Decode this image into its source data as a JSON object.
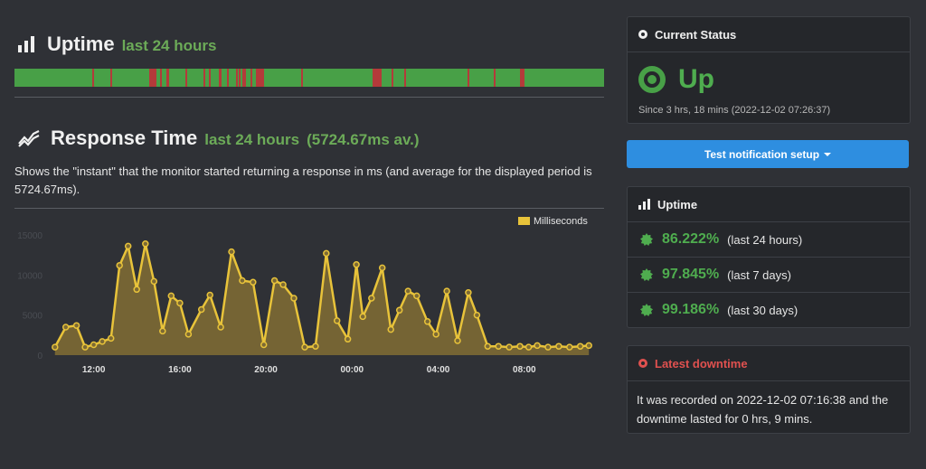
{
  "uptime_section": {
    "title": "Uptime",
    "subtitle": "last 24 hours",
    "bar": {
      "ok_color": "#48a047",
      "down_color": "#b43a3a",
      "down_segments": [
        [
          0.132,
          0.133
        ],
        [
          0.162,
          0.163
        ],
        [
          0.229,
          0.241
        ],
        [
          0.247,
          0.248
        ],
        [
          0.258,
          0.262
        ],
        [
          0.29,
          0.291
        ],
        [
          0.32,
          0.321
        ],
        [
          0.33,
          0.331
        ],
        [
          0.347,
          0.352
        ],
        [
          0.36,
          0.363
        ],
        [
          0.375,
          0.376
        ],
        [
          0.38,
          0.381
        ],
        [
          0.387,
          0.388
        ],
        [
          0.39,
          0.392
        ],
        [
          0.4,
          0.401
        ],
        [
          0.41,
          0.424
        ],
        [
          0.486,
          0.487
        ],
        [
          0.608,
          0.623
        ],
        [
          0.64,
          0.641
        ],
        [
          0.661,
          0.663
        ],
        [
          0.769,
          0.772
        ],
        [
          0.813,
          0.814
        ],
        [
          0.858,
          0.866
        ]
      ]
    }
  },
  "response_section": {
    "title": "Response Time",
    "subtitle": "last 24 hours",
    "average": "(5724.67ms av.)",
    "description": "Shows the \"instant\" that the monitor started returning a response in ms (and average for the displayed period is 5724.67ms)."
  },
  "chart_data": {
    "type": "area",
    "legend": "Milliseconds",
    "legend_position": "top-right",
    "ylim": [
      0,
      15000
    ],
    "y_ticks": [
      "15000",
      "10000",
      "5000",
      "0"
    ],
    "y_tick_values": [
      15000,
      10000,
      5000,
      0
    ],
    "x_tick_labels": [
      "12:00",
      "16:00",
      "20:00",
      "00:00",
      "04:00",
      "08:00"
    ],
    "x_tick_hours": [
      1.0,
      5.0,
      9.0,
      13.0,
      17.0,
      21.0
    ],
    "x_hours": [
      -0.8,
      -0.3,
      0.2,
      0.6,
      1.0,
      1.4,
      1.8,
      2.2,
      2.6,
      3.0,
      3.4,
      3.8,
      4.2,
      4.6,
      5.0,
      5.4,
      6.0,
      6.4,
      6.9,
      7.4,
      7.9,
      8.4,
      8.9,
      9.4,
      9.8,
      10.3,
      10.8,
      11.3,
      11.8,
      12.3,
      12.8,
      13.2,
      13.5,
      13.9,
      14.4,
      14.8,
      15.2,
      15.6,
      16.0,
      16.5,
      16.9,
      17.4,
      17.9,
      18.4,
      18.8,
      19.3,
      19.8,
      20.3,
      20.8,
      21.2,
      21.6,
      22.1,
      22.6,
      23.1,
      23.6,
      24.0
    ],
    "values": [
      1000,
      3500,
      3700,
      1000,
      1300,
      1700,
      2100,
      11200,
      13600,
      8200,
      13900,
      9200,
      3000,
      7400,
      6500,
      2600,
      5700,
      7500,
      3500,
      12900,
      9300,
      9100,
      1300,
      9300,
      8800,
      7100,
      1000,
      1100,
      12700,
      4300,
      2000,
      11300,
      4800,
      7100,
      10900,
      3200,
      5600,
      8000,
      7400,
      4200,
      2600,
      8000,
      1800,
      7800,
      5000,
      1100,
      1100,
      1000,
      1100,
      1000,
      1200,
      1000,
      1100,
      1000,
      1100,
      1200
    ]
  },
  "current_status": {
    "title": "Current Status",
    "status": "Up",
    "since": "Since 3 hrs, 18 mins (2022-12-02 07:26:37)"
  },
  "test_button": {
    "label": "Test notification setup"
  },
  "uptime_panel": {
    "title": "Uptime",
    "items": [
      {
        "percent": "86.222%",
        "period": "(last 24 hours)"
      },
      {
        "percent": "97.845%",
        "period": "(last 7 days)"
      },
      {
        "percent": "99.186%",
        "period": "(last 30 days)"
      }
    ]
  },
  "latest_downtime": {
    "title": "Latest downtime",
    "text": "It was recorded on 2022-12-02 07:16:38 and the downtime lasted for 0 hrs, 9 mins."
  },
  "colors": {
    "accent_green": "#4fad4f",
    "chart_line": "#e8c33a",
    "chart_fill": "#7d6a34",
    "button_blue": "#2e8ee0",
    "downtime_red": "#e0514f"
  }
}
